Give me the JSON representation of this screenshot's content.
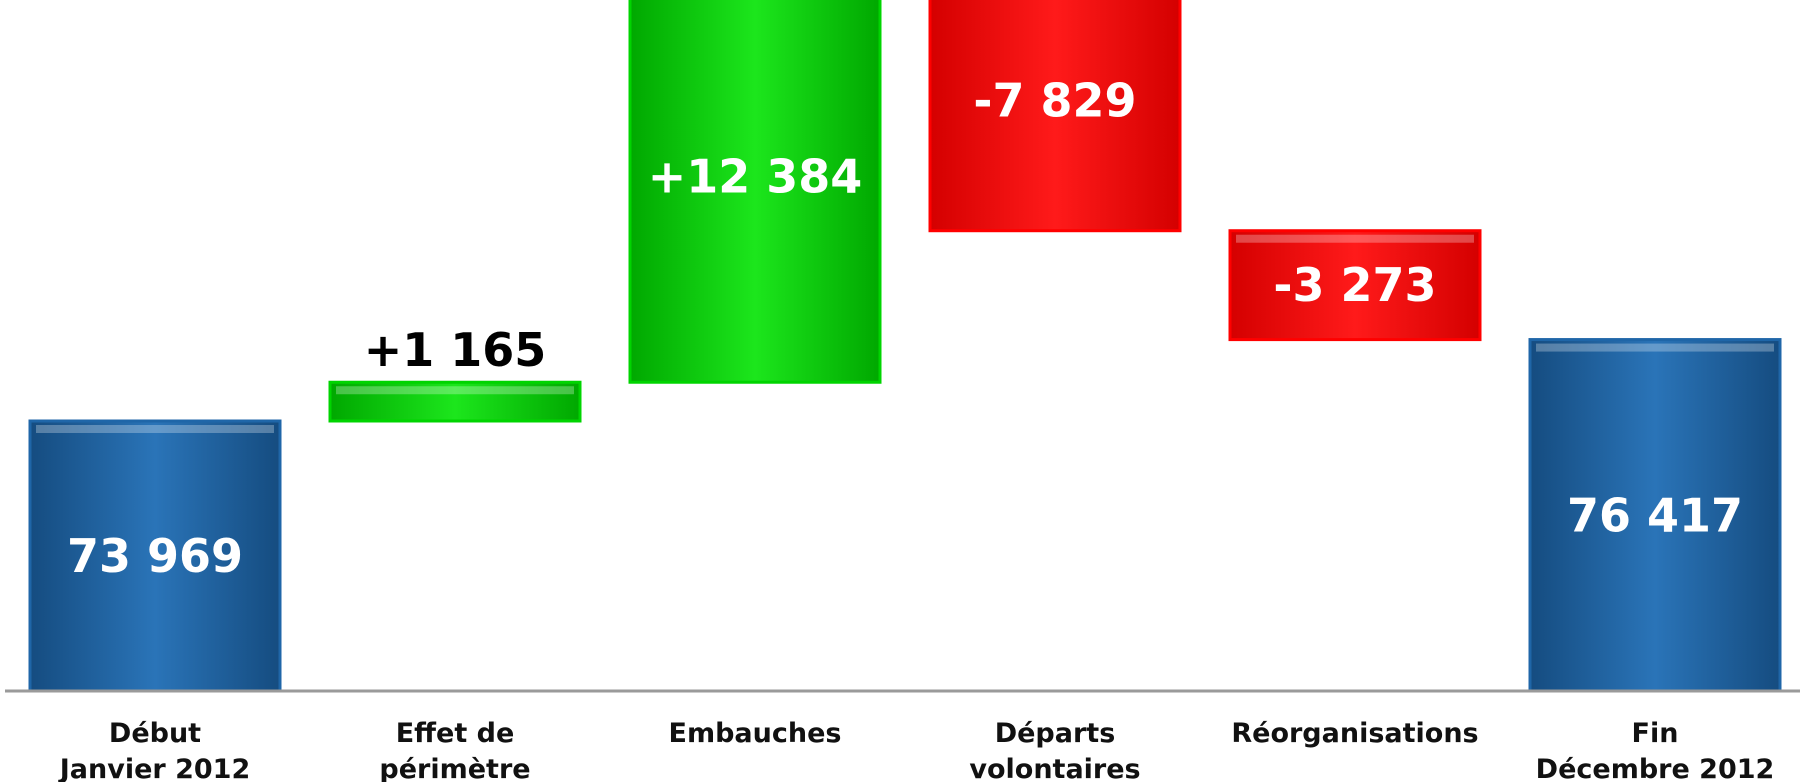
{
  "chart_data": {
    "type": "bar",
    "subtype": "waterfall",
    "categories": [
      [
        "Début",
        "Janvier 2012"
      ],
      [
        "Effet de",
        "périmètre"
      ],
      [
        "Embauches"
      ],
      [
        "Départs",
        "volontaires"
      ],
      [
        "Réorganisations"
      ],
      [
        "Fin",
        "Décembre 2012"
      ]
    ],
    "values": [
      73969,
      1165,
      12384,
      -7829,
      -3273,
      76417
    ],
    "bar_kinds": [
      "total",
      "increase",
      "increase",
      "decrease",
      "decrease",
      "total"
    ],
    "data_labels": [
      "73 969",
      "+1 165",
      "+12 384",
      "-7 829",
      "-3 273",
      "76 417"
    ],
    "data_label_inside": [
      true,
      false,
      true,
      true,
      true,
      true
    ],
    "title": "",
    "xlabel": "",
    "ylabel": "",
    "y_axis_visible": false,
    "grid": false,
    "legend": "none",
    "colors": {
      "total": "#1f66a8",
      "increase": "#00d400",
      "decrease": "#ff0000",
      "label_inside": "#ffffff",
      "label_outside": "#000000",
      "axis": "#9a9a9a"
    }
  }
}
